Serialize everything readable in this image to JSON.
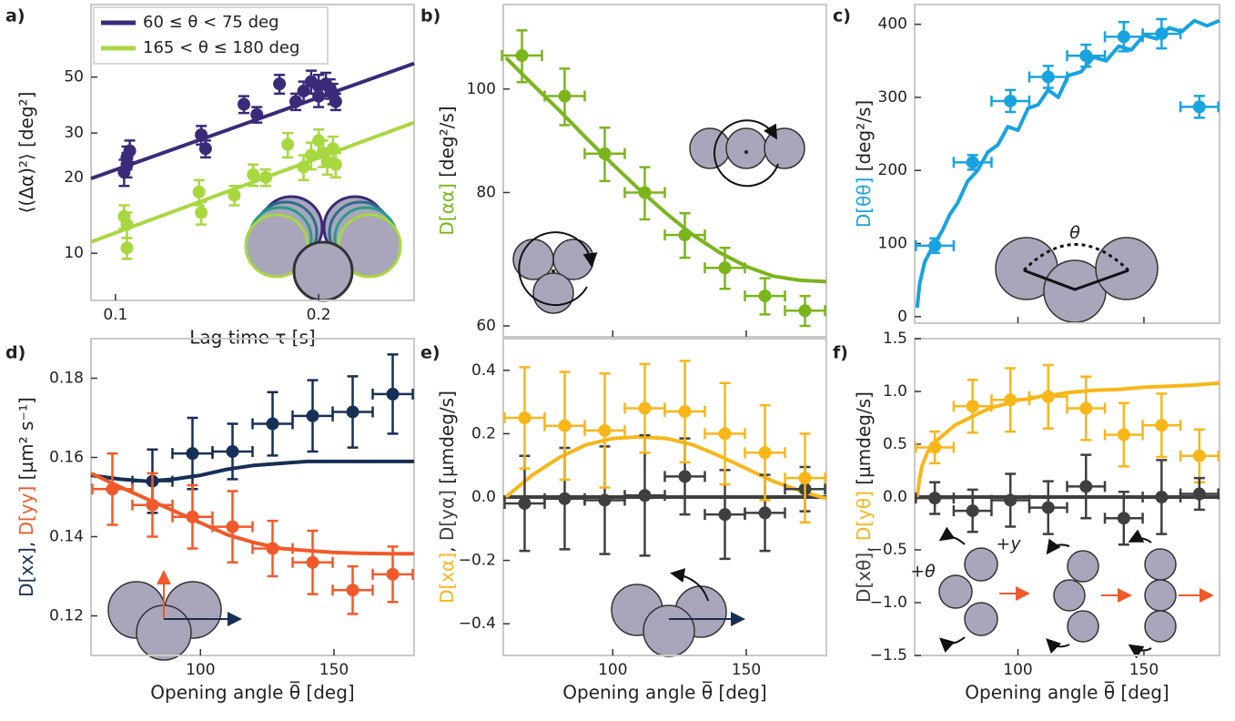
{
  "chart_data": [
    {
      "type": "scatter",
      "label": "a)",
      "xlabel": "Lag time τ [s]",
      "ylabel": [
        {
          "text": "⟨(Δα)²⟩ [deg²]"
        }
      ],
      "xlog": true,
      "ylog": true,
      "xlim": [
        0.092,
        0.277
      ],
      "ylim": [
        6.5,
        97
      ],
      "xticks": [
        0.1,
        0.2
      ],
      "yticks": [
        10,
        20,
        30,
        50
      ],
      "legend": "upper left",
      "series": [
        {
          "type": "errorbar",
          "color": "#3b2a78",
          "x": [
            0.103,
            0.104,
            0.104,
            0.105,
            0.134,
            0.136,
            0.155,
            0.162,
            0.175,
            0.185,
            0.19,
            0.195,
            0.2,
            0.2,
            0.205,
            0.208,
            0.21,
            0.212
          ],
          "values": [
            21,
            22.5,
            24,
            25.5,
            29.5,
            26,
            39,
            35.5,
            47,
            40,
            44,
            48,
            42,
            46,
            47,
            45,
            43,
            40
          ],
          "yerr": [
            2.5,
            2.5,
            2.5,
            2.5,
            2.5,
            2,
            3,
            2.5,
            4,
            3,
            4,
            5,
            4,
            5,
            5,
            4,
            4,
            3
          ]
        },
        {
          "type": "errorbar",
          "color": "#a8d840",
          "x": [
            0.103,
            0.104,
            0.104,
            0.133,
            0.134,
            0.15,
            0.16,
            0.167,
            0.18,
            0.19,
            0.195,
            0.2,
            0.203,
            0.206,
            0.21,
            0.212
          ],
          "values": [
            14,
            13,
            10.5,
            17.5,
            14.5,
            17,
            20.5,
            20,
            27,
            22,
            24.5,
            28,
            25,
            23,
            26,
            22.5
          ],
          "yerr": [
            1.5,
            1.5,
            1,
            2,
            1.5,
            1.5,
            2,
            1.5,
            3,
            2.5,
            3,
            3,
            3,
            2.5,
            3,
            2.5
          ]
        },
        {
          "type": "line",
          "name": "60 ≤ θ < 75 deg",
          "color": "#3b2a78",
          "x": [
            0.092,
            0.277
          ],
          "values": [
            19.8,
            56.6
          ]
        },
        {
          "type": "line",
          "name": "165 < θ ≤ 180 deg",
          "color": "#a8d840",
          "x": [
            0.092,
            0.277
          ],
          "values": [
            11.1,
            33
          ]
        }
      ]
    },
    {
      "type": "scatter",
      "label": "b)",
      "ylabel": [
        {
          "text": "D[αα]",
          "color": "#7ab51d"
        },
        {
          "text": " [deg²/s]"
        }
      ],
      "ylog": true,
      "xlim": [
        59,
        180
      ],
      "ylim": [
        58.6,
        120
      ],
      "xticks": [
        100,
        150
      ],
      "xtick_labels": false,
      "yticks": [
        60,
        80,
        100
      ],
      "series": [
        {
          "type": "line",
          "color": "#7ab51d",
          "x": [
            60,
            70,
            80,
            90,
            100,
            110,
            120,
            130,
            140,
            150,
            160,
            170,
            180
          ],
          "values": [
            107,
            101,
            95.5,
            90,
            85,
            80.5,
            76.5,
            73,
            70.3,
            68.2,
            66.8,
            66.2,
            66
          ]
        },
        {
          "type": "errorbar",
          "color": "#7ab51d",
          "x": [
            66,
            82,
            97,
            112,
            127,
            142,
            157,
            172
          ],
          "values": [
            107.5,
            98.5,
            87,
            80,
            73,
            68,
            64,
            62
          ],
          "yerr": [
            6,
            6,
            5,
            4.5,
            3.5,
            3,
            2.5,
            2
          ],
          "xerr": [
            7.5,
            7.5,
            7.5,
            7.5,
            7.5,
            7.5,
            7.5,
            7.5
          ]
        }
      ]
    },
    {
      "type": "scatter",
      "label": "c)",
      "ylabel": [
        {
          "text": "D[θθ]",
          "color": "#18a3e0"
        },
        {
          "text": " [deg²/s]"
        }
      ],
      "xlim": [
        59,
        180
      ],
      "ylim": [
        -9,
        427
      ],
      "xticks": [
        100,
        150
      ],
      "xtick_labels": false,
      "yticks": [
        0,
        100,
        200,
        300,
        400
      ],
      "annotations": [
        {
          "text": "θ"
        }
      ],
      "series": [
        {
          "type": "line",
          "color": "#18a3e0",
          "x": [
            60,
            61,
            62,
            63,
            65,
            67,
            70,
            73,
            76,
            80,
            84,
            88,
            92,
            96,
            100,
            104,
            108,
            112,
            116,
            120,
            125,
            130,
            135,
            140,
            145,
            150,
            155,
            160,
            165,
            170,
            175,
            180
          ],
          "values": [
            12,
            45,
            60,
            75,
            88,
            100,
            118,
            140,
            155,
            185,
            200,
            225,
            235,
            260,
            255,
            285,
            290,
            310,
            300,
            330,
            335,
            355,
            350,
            370,
            365,
            385,
            380,
            395,
            390,
            405,
            398,
            405
          ]
        },
        {
          "type": "errorbar",
          "color": "#18a3e0",
          "x": [
            67,
            82,
            97,
            112,
            127,
            142,
            157,
            172
          ],
          "values": [
            97,
            211,
            295,
            328,
            357,
            383,
            387,
            287
          ],
          "yerr": [
            10,
            10,
            15,
            15,
            15,
            20,
            20,
            15
          ],
          "xerr": [
            7.5,
            7.5,
            7.5,
            7.5,
            7.5,
            7.5,
            7.5,
            7.5
          ]
        }
      ]
    },
    {
      "type": "scatter",
      "label": "d)",
      "xlabel": "Opening angle θ̅ [deg]",
      "ylabel": [
        {
          "text": "D[xx]",
          "color": "#162f55"
        },
        {
          "text": ", "
        },
        {
          "text": "D[yy]",
          "color": "#f2592a"
        },
        {
          "text": " [µm² s⁻¹]"
        }
      ],
      "xlim": [
        59,
        180
      ],
      "ylim": [
        0.11,
        0.19
      ],
      "xticks": [
        100,
        150
      ],
      "yticks": [
        0.12,
        0.14,
        0.16,
        0.18
      ],
      "series": [
        {
          "type": "line",
          "color": "#162f55",
          "x": [
            59,
            70,
            80,
            90,
            100,
            110,
            120,
            130,
            140,
            150,
            160,
            170,
            180
          ],
          "values": [
            0.1555,
            0.1545,
            0.154,
            0.1545,
            0.1555,
            0.157,
            0.158,
            0.1585,
            0.159,
            0.159,
            0.159,
            0.159,
            0.159
          ]
        },
        {
          "type": "line",
          "color": "#f2592a",
          "x": [
            59,
            70,
            80,
            90,
            100,
            110,
            120,
            130,
            140,
            150,
            160,
            170,
            180
          ],
          "values": [
            0.156,
            0.1525,
            0.1495,
            0.1465,
            0.1435,
            0.1405,
            0.1385,
            0.137,
            0.1365,
            0.136,
            0.1358,
            0.1357,
            0.1357
          ]
        },
        {
          "type": "errorbar",
          "color": "#162f55",
          "x": [
            82,
            97,
            112,
            127,
            142,
            157,
            172
          ],
          "values": [
            0.154,
            0.161,
            0.1615,
            0.1685,
            0.1705,
            0.1715,
            0.176
          ],
          "yerr": [
            0.008,
            0.009,
            0.007,
            0.008,
            0.009,
            0.009,
            0.01
          ],
          "xerr": [
            7.5,
            7.5,
            7.5,
            7.5,
            7.5,
            7.5,
            7.5
          ]
        },
        {
          "type": "errorbar",
          "color": "#f2592a",
          "x": [
            67,
            82,
            97,
            112,
            127,
            142,
            157,
            172
          ],
          "values": [
            0.152,
            0.148,
            0.145,
            0.1425,
            0.137,
            0.1335,
            0.1265,
            0.1305
          ],
          "yerr": [
            0.009,
            0.008,
            0.008,
            0.009,
            0.007,
            0.008,
            0.006,
            0.007
          ],
          "xerr": [
            7.5,
            7.5,
            7.5,
            7.5,
            7.5,
            7.5,
            7.5,
            7.5
          ]
        }
      ]
    },
    {
      "type": "scatter",
      "label": "e)",
      "xlabel": "Opening angle θ̅ [deg]",
      "ylabel": [
        {
          "text": "D[xα]",
          "color": "#f8b619"
        },
        {
          "text": ", "
        },
        {
          "text": "D[yα]",
          "color": "#3f3f3f"
        },
        {
          "text": " [µmdeg/s]"
        }
      ],
      "xlim": [
        59,
        180
      ],
      "ylim": [
        -0.5,
        0.5
      ],
      "xticks": [
        100,
        150
      ],
      "yticks": [
        {
          "value": -0.4,
          "label": "−0.4"
        },
        {
          "value": -0.2,
          "label": "−0.2"
        },
        {
          "value": 0,
          "label": "0.0"
        },
        0.2,
        0.4
      ],
      "series": [
        {
          "type": "line",
          "color": "#3f3f3f",
          "x": [
            59,
            180
          ],
          "values": [
            0,
            0
          ]
        },
        {
          "type": "line",
          "color": "#f8b619",
          "x": [
            60,
            70,
            80,
            90,
            100,
            110,
            120,
            130,
            140,
            150,
            160,
            170,
            180
          ],
          "values": [
            0,
            0.07,
            0.125,
            0.165,
            0.185,
            0.19,
            0.185,
            0.165,
            0.13,
            0.09,
            0.05,
            0.02,
            -0.005
          ]
        },
        {
          "type": "errorbar",
          "color": "#3f3f3f",
          "x": [
            67,
            82,
            97,
            112,
            127,
            142,
            157,
            172
          ],
          "values": [
            -0.02,
            -0.005,
            -0.01,
            0.005,
            0.065,
            -0.055,
            -0.05,
            0.025
          ],
          "yerr": [
            0.15,
            0.16,
            0.17,
            0.19,
            0.12,
            0.14,
            0.12,
            0.07
          ],
          "xerr": [
            7.5,
            7.5,
            7.5,
            7.5,
            7.5,
            7.5,
            7.5,
            7.5
          ]
        },
        {
          "type": "errorbar",
          "color": "#f8b619",
          "x": [
            67,
            82,
            97,
            112,
            127,
            142,
            157,
            172
          ],
          "values": [
            0.25,
            0.225,
            0.21,
            0.28,
            0.27,
            0.2,
            0.14,
            0.06
          ],
          "yerr": [
            0.16,
            0.17,
            0.18,
            0.14,
            0.16,
            0.16,
            0.15,
            0.14
          ],
          "xerr": [
            7.5,
            7.5,
            7.5,
            7.5,
            7.5,
            7.5,
            7.5,
            7.5
          ]
        }
      ]
    },
    {
      "type": "scatter",
      "label": "f)",
      "xlabel": "Opening angle θ̅ [deg]",
      "ylabel": [
        {
          "text": "D[xθ]",
          "color": "#3f3f3f"
        },
        {
          "text": ", "
        },
        {
          "text": "D[yθ]",
          "color": "#f8b619"
        },
        {
          "text": " [µmdeg/s]"
        }
      ],
      "xlim": [
        59,
        180
      ],
      "ylim": [
        -1.5,
        1.5
      ],
      "xticks": [
        100,
        150
      ],
      "yticks": [
        {
          "value": -1.5,
          "label": "−1.5"
        },
        {
          "value": -1,
          "label": "−1.0"
        },
        {
          "value": -0.5,
          "label": "−0.5"
        },
        {
          "value": 0,
          "label": "0.0"
        },
        0.5,
        {
          "value": 1,
          "label": "1.0"
        },
        1.5
      ],
      "annotations": [
        {
          "text": "+y",
          "color": "#f2592a"
        },
        {
          "text": "+θ"
        }
      ],
      "series": [
        {
          "type": "line",
          "color": "#3f3f3f",
          "x": [
            59,
            180
          ],
          "values": [
            0,
            0
          ]
        },
        {
          "type": "line",
          "color": "#f8b619",
          "x": [
            60,
            61,
            62,
            64,
            66,
            70,
            75,
            80,
            85,
            90,
            95,
            100,
            105,
            110,
            115,
            120,
            130,
            140,
            150,
            160,
            170,
            180
          ],
          "values": [
            0,
            0.18,
            0.3,
            0.42,
            0.5,
            0.58,
            0.68,
            0.74,
            0.8,
            0.85,
            0.88,
            0.92,
            0.93,
            0.96,
            0.97,
            0.99,
            1.01,
            1.02,
            1.04,
            1.05,
            1.06,
            1.08
          ]
        },
        {
          "type": "errorbar",
          "color": "#f8b619",
          "x": [
            67,
            82,
            97,
            112,
            127,
            142,
            157,
            172
          ],
          "values": [
            0.47,
            0.86,
            0.92,
            0.95,
            0.84,
            0.59,
            0.68,
            0.39
          ],
          "yerr": [
            0.15,
            0.25,
            0.3,
            0.3,
            0.3,
            0.3,
            0.3,
            0.25
          ],
          "xerr": [
            7.5,
            7.5,
            7.5,
            7.5,
            7.5,
            7.5,
            7.5,
            7.5
          ]
        },
        {
          "type": "errorbar",
          "color": "#3f3f3f",
          "x": [
            67,
            82,
            97,
            112,
            127,
            142,
            157,
            172
          ],
          "values": [
            -0.01,
            -0.13,
            -0.03,
            -0.1,
            0.1,
            -0.2,
            0,
            0.03
          ],
          "yerr": [
            0.15,
            0.2,
            0.25,
            0.25,
            0.3,
            0.25,
            0.35,
            0.15
          ],
          "xerr": [
            7.5,
            7.5,
            7.5,
            7.5,
            7.5,
            7.5,
            7.5,
            7.5
          ]
        }
      ]
    }
  ]
}
